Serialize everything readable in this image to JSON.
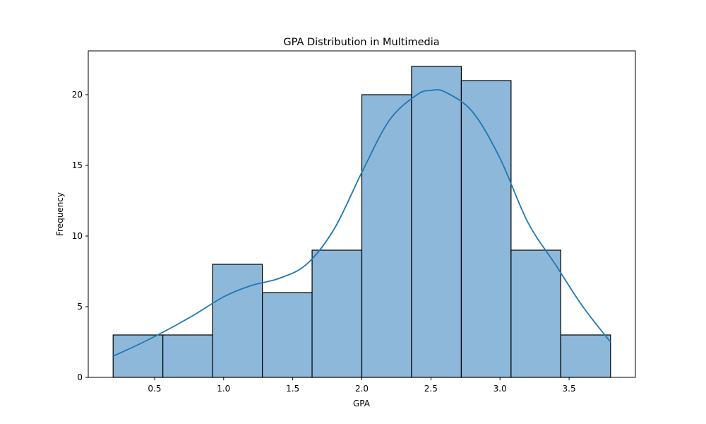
{
  "chart_data": {
    "type": "bar",
    "title": "GPA Distribution in Multimedia",
    "xlabel": "GPA",
    "ylabel": "Frequency",
    "bins": [
      {
        "start": 0.2,
        "end": 0.56,
        "value": 3
      },
      {
        "start": 0.56,
        "end": 0.92,
        "value": 3
      },
      {
        "start": 0.92,
        "end": 1.28,
        "value": 8
      },
      {
        "start": 1.28,
        "end": 1.64,
        "value": 6
      },
      {
        "start": 1.64,
        "end": 2.0,
        "value": 9
      },
      {
        "start": 2.0,
        "end": 2.36,
        "value": 20
      },
      {
        "start": 2.36,
        "end": 2.72,
        "value": 22
      },
      {
        "start": 2.72,
        "end": 3.08,
        "value": 21
      },
      {
        "start": 3.08,
        "end": 3.44,
        "value": 9
      },
      {
        "start": 3.44,
        "end": 3.8,
        "value": 3
      }
    ],
    "kde_curve": {
      "x": [
        0.2,
        0.4,
        0.6,
        0.8,
        1.0,
        1.2,
        1.4,
        1.6,
        1.8,
        2.0,
        2.2,
        2.4,
        2.5,
        2.6,
        2.8,
        3.0,
        3.2,
        3.4,
        3.6,
        3.8
      ],
      "y": [
        1.5,
        2.4,
        3.4,
        4.5,
        5.7,
        6.5,
        7.0,
        8.0,
        10.5,
        14.5,
        18.2,
        20.0,
        20.3,
        20.2,
        18.8,
        15.5,
        11.0,
        8.0,
        5.0,
        2.5
      ]
    },
    "xlim": [
      0.02,
      3.98
    ],
    "ylim": [
      0,
      23.1
    ],
    "xticks": [
      0.5,
      1.0,
      1.5,
      2.0,
      2.5,
      3.0,
      3.5
    ],
    "xtick_labels": [
      "0.5",
      "1.0",
      "1.5",
      "2.0",
      "2.5",
      "3.0",
      "3.5"
    ],
    "yticks": [
      0,
      5,
      10,
      15,
      20
    ],
    "ytick_labels": [
      "0",
      "5",
      "10",
      "15",
      "20"
    ],
    "grid": false,
    "colors": {
      "bar_fill": "#8db8da",
      "bar_edge": "#000000",
      "kde_line": "#1f77b4"
    }
  }
}
